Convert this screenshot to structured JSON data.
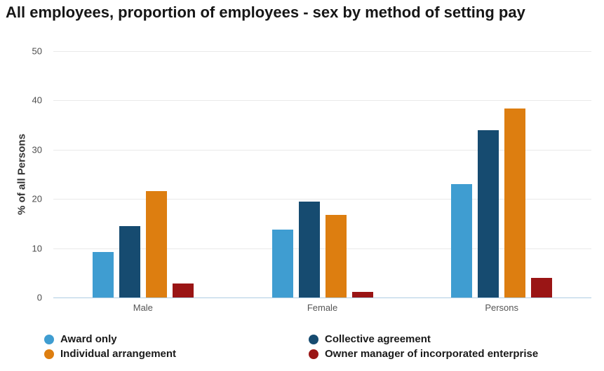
{
  "chart_data": {
    "type": "bar",
    "title": "All employees, proportion of employees - sex by method of setting pay",
    "xlabel": "",
    "ylabel": "% of all Persons",
    "categories": [
      "Male",
      "Female",
      "Persons"
    ],
    "series": [
      {
        "name": "Award only",
        "color": "#3F9DD1",
        "values": [
          9.2,
          13.8,
          23.0
        ]
      },
      {
        "name": "Collective agreement",
        "color": "#164B70",
        "values": [
          14.5,
          19.4,
          33.9
        ]
      },
      {
        "name": "Individual arrangement",
        "color": "#DD7E10",
        "values": [
          21.6,
          16.8,
          38.4
        ]
      },
      {
        "name": "Owner manager of incorporated enterprise",
        "color": "#9A1515",
        "values": [
          2.9,
          1.1,
          4.0
        ]
      }
    ],
    "ylim": [
      0,
      50
    ],
    "yticks": [
      0,
      10,
      20,
      30,
      40,
      50
    ],
    "grid": true,
    "legend_position": "bottom",
    "colors": {
      "gridline": "#E9E9E9",
      "axis_line": "#AFCDE3",
      "title_text": "#161616",
      "tick_text": "#4D4D4D",
      "category_text": "#555555"
    }
  }
}
